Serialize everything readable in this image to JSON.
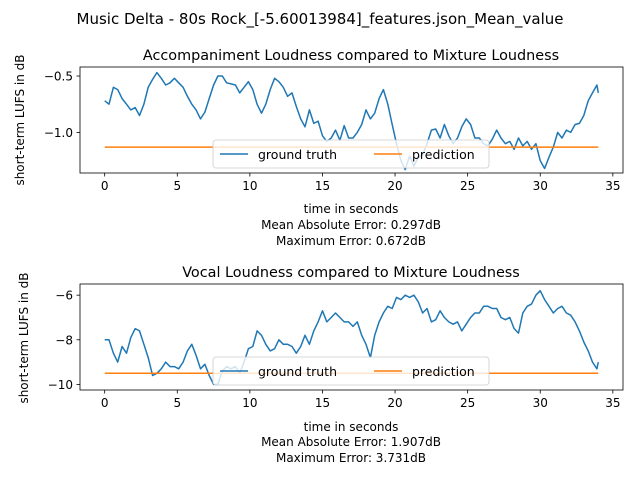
{
  "suptitle": "Music Delta - 80s Rock_[-5.60013984]_features.json_Mean_value",
  "colors": {
    "ground_truth": "#1f77b4",
    "prediction": "#ff7f0e",
    "axes": "#000000",
    "legend_frame": "#cccccc"
  },
  "chart_data": [
    {
      "type": "line",
      "title": "Accompaniment Loudness compared to Mixture Loudness",
      "xlabel": "time in seconds",
      "ylabel": "short-term LUFS in dB",
      "xlim": [
        -1.7,
        35.7
      ],
      "ylim": [
        -1.36,
        -0.42
      ],
      "xticks": [
        0,
        5,
        10,
        15,
        20,
        25,
        30,
        35
      ],
      "yticks": [
        -1.0,
        -0.5
      ],
      "ytick_labels": [
        "−1.0",
        "−0.5"
      ],
      "grid": false,
      "legend": {
        "position": "lower-center",
        "columns": 2
      },
      "metrics": [
        "Mean Absolute Error: 0.297dB",
        "Maximum Error: 0.672dB"
      ],
      "series": [
        {
          "name": "ground truth",
          "x": [
            0,
            0.3,
            0.6,
            0.9,
            1.2,
            1.5,
            1.8,
            2.1,
            2.4,
            2.7,
            3.0,
            3.3,
            3.6,
            3.9,
            4.2,
            4.5,
            4.8,
            5.1,
            5.4,
            5.7,
            6.0,
            6.3,
            6.6,
            6.9,
            7.2,
            7.5,
            7.8,
            8.1,
            8.4,
            8.7,
            9.0,
            9.3,
            9.6,
            9.9,
            10.2,
            10.5,
            10.8,
            11.1,
            11.4,
            11.7,
            12.0,
            12.3,
            12.6,
            12.9,
            13.2,
            13.5,
            13.8,
            14.1,
            14.4,
            14.7,
            15.0,
            15.3,
            15.6,
            15.9,
            16.2,
            16.5,
            16.8,
            17.1,
            17.4,
            17.7,
            18.0,
            18.3,
            18.6,
            18.9,
            19.2,
            19.5,
            19.8,
            20.1,
            20.4,
            20.7,
            21.0,
            21.3,
            21.6,
            21.9,
            22.2,
            22.5,
            22.8,
            23.1,
            23.4,
            23.7,
            24.0,
            24.3,
            24.6,
            24.9,
            25.2,
            25.5,
            25.8,
            26.1,
            26.4,
            26.7,
            27.0,
            27.3,
            27.6,
            27.9,
            28.2,
            28.5,
            28.8,
            29.1,
            29.4,
            29.7,
            30.0,
            30.3,
            30.6,
            30.9,
            31.2,
            31.5,
            31.8,
            32.1,
            32.4,
            32.7,
            33.0,
            33.3,
            33.6,
            33.9,
            34.0
          ],
          "values": [
            -0.72,
            -0.75,
            -0.6,
            -0.62,
            -0.7,
            -0.75,
            -0.8,
            -0.78,
            -0.85,
            -0.75,
            -0.6,
            -0.53,
            -0.47,
            -0.52,
            -0.58,
            -0.56,
            -0.52,
            -0.56,
            -0.6,
            -0.68,
            -0.75,
            -0.8,
            -0.88,
            -0.82,
            -0.7,
            -0.58,
            -0.5,
            -0.5,
            -0.56,
            -0.57,
            -0.58,
            -0.65,
            -0.6,
            -0.55,
            -0.62,
            -0.75,
            -0.83,
            -0.75,
            -0.62,
            -0.52,
            -0.55,
            -0.6,
            -0.68,
            -0.65,
            -0.77,
            -0.88,
            -0.95,
            -0.8,
            -0.92,
            -0.9,
            -1.03,
            -1.08,
            -1.05,
            -0.98,
            -1.07,
            -0.94,
            -1.05,
            -1.05,
            -1.0,
            -0.93,
            -0.8,
            -0.88,
            -0.83,
            -0.7,
            -0.62,
            -0.75,
            -0.93,
            -1.1,
            -1.25,
            -1.33,
            -1.21,
            -1.3,
            -1.22,
            -1.2,
            -1.1,
            -0.98,
            -0.97,
            -1.05,
            -0.93,
            -1.03,
            -1.1,
            -1.05,
            -0.95,
            -0.88,
            -0.93,
            -1.05,
            -1.05,
            -1.1,
            -1.12,
            -1.06,
            -0.98,
            -1.05,
            -1.1,
            -1.08,
            -1.15,
            -1.05,
            -1.12,
            -1.08,
            -1.15,
            -1.1,
            -1.25,
            -1.32,
            -1.22,
            -1.13,
            -1.0,
            -1.05,
            -0.98,
            -1.0,
            -0.93,
            -0.92,
            -0.85,
            -0.72,
            -0.65,
            -0.58,
            -0.65
          ]
        },
        {
          "name": "prediction",
          "x": [
            0,
            34
          ],
          "values": [
            -1.13,
            -1.13
          ]
        }
      ]
    },
    {
      "type": "line",
      "title": "Vocal Loudness compared to Mixture Loudness",
      "xlabel": "time in seconds",
      "ylabel": "short-term LUFS in dB",
      "xlim": [
        -1.7,
        35.7
      ],
      "ylim": [
        -10.25,
        -5.5
      ],
      "xticks": [
        0,
        5,
        10,
        15,
        20,
        25,
        30,
        35
      ],
      "yticks": [
        -10,
        -8,
        -6
      ],
      "ytick_labels": [
        "−10",
        "−8",
        "−6"
      ],
      "grid": false,
      "legend": {
        "position": "lower-center",
        "columns": 2
      },
      "metrics": [
        "Mean Absolute Error: 1.907dB",
        "Maximum Error: 3.731dB"
      ],
      "series": [
        {
          "name": "ground truth",
          "x": [
            0,
            0.3,
            0.6,
            0.9,
            1.2,
            1.5,
            1.8,
            2.1,
            2.4,
            2.7,
            3.0,
            3.3,
            3.6,
            3.9,
            4.2,
            4.5,
            4.8,
            5.1,
            5.4,
            5.7,
            6.0,
            6.3,
            6.6,
            6.9,
            7.2,
            7.5,
            7.8,
            8.1,
            8.4,
            8.7,
            9.0,
            9.3,
            9.6,
            9.9,
            10.2,
            10.5,
            10.8,
            11.1,
            11.4,
            11.7,
            12.0,
            12.3,
            12.6,
            12.9,
            13.2,
            13.5,
            13.8,
            14.1,
            14.4,
            14.7,
            15.0,
            15.3,
            15.6,
            15.9,
            16.2,
            16.5,
            16.8,
            17.1,
            17.4,
            17.7,
            18.0,
            18.3,
            18.6,
            18.9,
            19.2,
            19.5,
            19.8,
            20.1,
            20.4,
            20.7,
            21.0,
            21.3,
            21.6,
            21.9,
            22.2,
            22.5,
            22.8,
            23.1,
            23.4,
            23.7,
            24.0,
            24.3,
            24.6,
            24.9,
            25.2,
            25.5,
            25.8,
            26.1,
            26.4,
            26.7,
            27.0,
            27.3,
            27.6,
            27.9,
            28.2,
            28.5,
            28.8,
            29.1,
            29.4,
            29.7,
            30.0,
            30.3,
            30.6,
            30.9,
            31.2,
            31.5,
            31.8,
            32.1,
            32.4,
            32.7,
            33.0,
            33.3,
            33.6,
            33.9,
            34.0
          ],
          "values": [
            -8.0,
            -8.0,
            -8.6,
            -9.0,
            -8.3,
            -8.6,
            -7.9,
            -7.5,
            -7.6,
            -8.2,
            -8.8,
            -9.6,
            -9.5,
            -9.3,
            -9.0,
            -9.2,
            -9.2,
            -9.3,
            -9.0,
            -8.5,
            -8.2,
            -8.7,
            -9.3,
            -9.1,
            -9.6,
            -10.0,
            -10.0,
            -9.4,
            -9.2,
            -9.3,
            -9.2,
            -9.5,
            -9.0,
            -8.4,
            -8.3,
            -7.6,
            -7.8,
            -8.2,
            -8.5,
            -8.4,
            -8.0,
            -8.2,
            -8.2,
            -8.3,
            -8.6,
            -8.3,
            -7.8,
            -8.2,
            -7.6,
            -7.2,
            -6.7,
            -7.2,
            -7.0,
            -6.8,
            -7.0,
            -7.2,
            -7.2,
            -7.4,
            -7.2,
            -7.8,
            -8.2,
            -8.8,
            -7.8,
            -7.2,
            -6.8,
            -6.5,
            -6.6,
            -6.1,
            -6.2,
            -6.0,
            -6.1,
            -6.0,
            -6.3,
            -6.8,
            -6.6,
            -7.2,
            -7.1,
            -6.7,
            -7.0,
            -7.2,
            -7.3,
            -7.2,
            -7.6,
            -7.3,
            -7.0,
            -6.8,
            -6.8,
            -6.5,
            -6.5,
            -6.6,
            -6.6,
            -7.0,
            -7.1,
            -7.0,
            -7.5,
            -7.7,
            -6.8,
            -6.5,
            -6.4,
            -6.0,
            -5.8,
            -6.2,
            -6.5,
            -6.8,
            -6.6,
            -6.5,
            -6.8,
            -6.9,
            -7.2,
            -7.6,
            -8.1,
            -8.5,
            -9.0,
            -9.3,
            -9.0
          ]
        },
        {
          "name": "prediction",
          "x": [
            0,
            34
          ],
          "values": [
            -9.5,
            -9.5
          ]
        }
      ]
    }
  ]
}
